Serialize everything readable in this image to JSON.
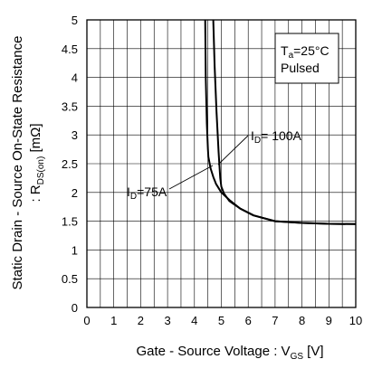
{
  "chart_data": {
    "type": "line",
    "xlabel": "Gate - Source Voltage : V",
    "xlabel_sub": "GS",
    "xlabel_unit": " [V]",
    "ylabel_line1": "Static Drain - Source On-State Resistance",
    "ylabel_line2_prefix": ": R",
    "ylabel_line2_sub": "DS(on)",
    "ylabel_line2_unit": " [mΩ]",
    "xlim": [
      0,
      10
    ],
    "ylim": [
      0,
      5
    ],
    "x_ticks": [
      0,
      1,
      2,
      3,
      4,
      5,
      6,
      7,
      8,
      9,
      10
    ],
    "y_ticks": [
      "0",
      "0.5",
      "1",
      "1.5",
      "2",
      "2.5",
      "3",
      "3.5",
      "4",
      "4.5",
      "5"
    ],
    "x_grid_step": 0.5,
    "y_grid_step": 0.5,
    "grid": true,
    "legend_box": {
      "line1_prefix": "T",
      "line1_sub": "a",
      "line1_value": "=25°C",
      "line2": "Pulsed",
      "placement": "top-right"
    },
    "series": [
      {
        "label_prefix": "I",
        "label_sub": "D",
        "label_value": "=75A",
        "x": [
          4.4,
          4.42,
          4.46,
          4.5,
          4.52,
          4.6,
          4.7,
          4.8,
          5.0,
          5.3,
          5.7,
          6.2,
          7.0,
          8.0,
          9.0,
          10.0
        ],
        "y": [
          5.0,
          4.0,
          3.2,
          2.75,
          2.62,
          2.42,
          2.27,
          2.15,
          2.0,
          1.87,
          1.72,
          1.6,
          1.5,
          1.47,
          1.455,
          1.45
        ]
      },
      {
        "label_prefix": "I",
        "label_sub": "D",
        "label_value": "= 100A",
        "x": [
          4.7,
          4.75,
          4.82,
          4.9,
          4.96,
          5.0,
          5.1,
          5.3,
          5.7,
          6.2,
          7.0,
          8.0,
          9.0,
          10.0
        ],
        "y": [
          5.0,
          4.2,
          3.4,
          2.7,
          2.25,
          2.1,
          1.98,
          1.85,
          1.72,
          1.6,
          1.5,
          1.47,
          1.455,
          1.45
        ]
      }
    ]
  }
}
